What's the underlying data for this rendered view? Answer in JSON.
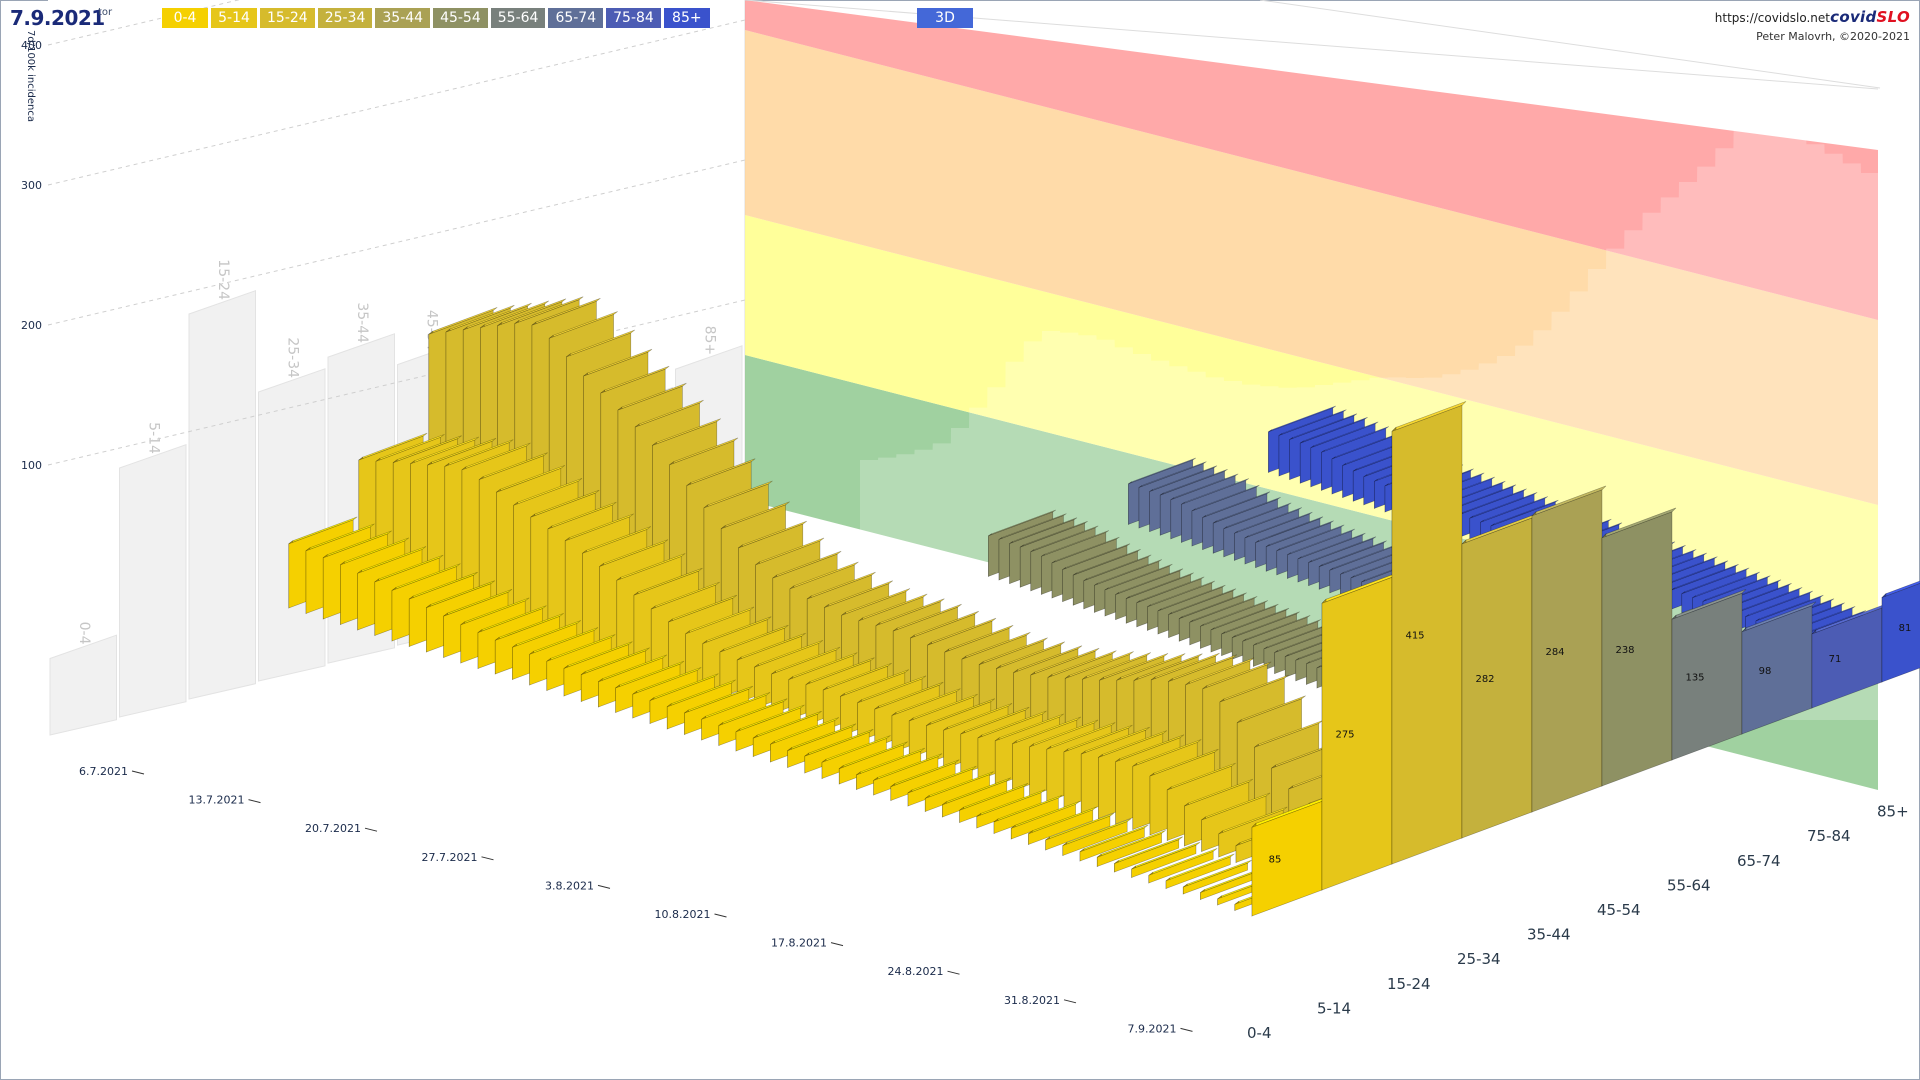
{
  "header": {
    "date": "7.9.2021",
    "weekday": "tor",
    "mode_button": "3D",
    "url": "https://covidslo.net",
    "brand_main": "covid",
    "brand_accent": "SLO",
    "author": "Peter Malovrh, ©2020-2021"
  },
  "legend": {
    "items": [
      {
        "label": "0-4",
        "color": "#f5d000"
      },
      {
        "label": "5-14",
        "color": "#e6c619"
      },
      {
        "label": "15-24",
        "color": "#d6bb2c"
      },
      {
        "label": "25-34",
        "color": "#c4b13d"
      },
      {
        "label": "35-44",
        "color": "#aaa154"
      },
      {
        "label": "45-54",
        "color": "#8e9163"
      },
      {
        "label": "55-64",
        "color": "#78807c"
      },
      {
        "label": "65-74",
        "color": "#5f6f98"
      },
      {
        "label": "75-84",
        "color": "#4c5cb4"
      },
      {
        "label": "85+",
        "color": "#3a52cc"
      }
    ]
  },
  "chart_data": {
    "type": "bar",
    "title": "",
    "ylabel": "7d/100k incidenca",
    "yticks": [
      100,
      200,
      300,
      400
    ],
    "ylim": [
      0,
      480
    ],
    "x_dates": [
      "6.7.2021",
      "13.7.2021",
      "20.7.2021",
      "27.7.2021",
      "3.8.2021",
      "10.8.2021",
      "17.8.2021",
      "24.8.2021",
      "31.8.2021",
      "7.9.2021"
    ],
    "categories": [
      "0-4",
      "5-14",
      "15-24",
      "25-34",
      "35-44",
      "45-54",
      "55-64",
      "65-74",
      "75-84",
      "85+"
    ],
    "latest_values": [
      85,
      275,
      415,
      282,
      284,
      238,
      135,
      98,
      71,
      81
    ],
    "back_wall_values": [
      90,
      293,
      453,
      340,
      360,
      330,
      240,
      220,
      212,
      240
    ],
    "front_row_history": [
      8,
      8,
      9,
      9,
      10,
      10,
      11,
      11,
      12,
      12,
      13,
      13,
      14,
      14,
      15,
      15,
      16,
      16,
      17,
      17,
      18,
      19,
      19,
      20,
      21,
      22,
      22,
      23,
      24,
      25,
      26,
      27,
      28,
      29,
      30,
      31,
      32,
      33,
      35,
      36,
      38,
      40,
      42,
      44,
      47,
      50,
      54,
      58,
      62,
      66,
      70,
      74,
      78,
      80,
      82,
      84,
      85
    ],
    "mid_row_history": [
      25,
      27,
      30,
      34,
      40,
      55,
      75,
      95,
      120,
      140,
      150,
      148,
      145,
      140,
      132,
      125,
      118,
      112,
      106,
      100,
      96,
      92,
      90,
      88,
      88,
      90,
      92,
      94,
      96,
      96,
      95,
      95,
      98,
      102,
      108,
      115,
      125,
      140,
      158,
      178,
      200,
      220,
      238,
      255,
      270,
      285,
      300,
      318,
      335,
      345,
      340,
      330,
      320,
      310,
      300,
      290,
      285
    ],
    "back_row_history": [
      30,
      30,
      31,
      31,
      32,
      32,
      33,
      33,
      34,
      34,
      35,
      35,
      36,
      36,
      37,
      37,
      38,
      38,
      38,
      39,
      39,
      39,
      40,
      40,
      40,
      41,
      41,
      41,
      42,
      42,
      42,
      43,
      43,
      43,
      44,
      44,
      45,
      45,
      46,
      46,
      47,
      48,
      49,
      50,
      52,
      54,
      56,
      60,
      64,
      70,
      76,
      78,
      80,
      80,
      81,
      81,
      81
    ],
    "risk_zones": [
      {
        "color": "#8fc98f"
      },
      {
        "color": "#ffff88"
      },
      {
        "color": "#ffd59a"
      },
      {
        "color": "#ff9a9a"
      }
    ]
  }
}
